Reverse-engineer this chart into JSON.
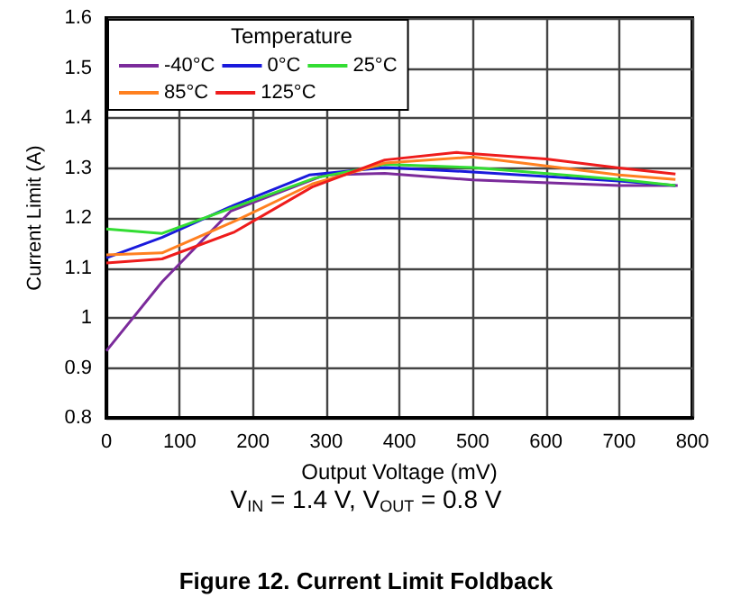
{
  "chart_data": {
    "type": "line",
    "title": "Figure 12. Current Limit Foldback",
    "xlabel": "Output Voltage (mV)",
    "ylabel": "Current Limit (A)",
    "legend_title": "Temperature",
    "annotations": [
      "V$_{IN}$ = 1.4 V, V$_{OUT}$ = 0.8 V"
    ],
    "xlim": [
      0,
      800
    ],
    "xticks": [
      0,
      100,
      200,
      300,
      400,
      500,
      600,
      700,
      800
    ],
    "ylim": [
      0.8,
      1.6
    ],
    "yticks": [
      0.8,
      0.9,
      1,
      1.1,
      1.2,
      1.3,
      1.4,
      1.5,
      1.6
    ],
    "grid": true,
    "legend": "top left",
    "marker": "none",
    "line_style": "solid",
    "series": [
      {
        "name": "-40°C",
        "color": "#7b2b9b",
        "x": [
          0,
          76,
          170,
          298,
          380,
          500,
          700,
          780
        ],
        "values": [
          0.934,
          1.072,
          1.214,
          1.286,
          1.289,
          1.276,
          1.265,
          1.265
        ]
      },
      {
        "name": "0°C",
        "color": "#1a1adc",
        "x": [
          0,
          76,
          175,
          277,
          380,
          500,
          700,
          777
        ],
        "values": [
          1.12,
          1.161,
          1.226,
          1.286,
          1.301,
          1.292,
          1.274,
          1.265
        ]
      },
      {
        "name": "25°C",
        "color": "#33dd33",
        "x": [
          0,
          76,
          183,
          285,
          380,
          500,
          700,
          777
        ],
        "values": [
          1.178,
          1.169,
          1.226,
          1.28,
          1.307,
          1.301,
          1.277,
          1.265
        ]
      },
      {
        "name": "85°C",
        "color": "#ff8020",
        "x": [
          0,
          76,
          179,
          281,
          380,
          500,
          700,
          777
        ],
        "values": [
          1.126,
          1.13,
          1.196,
          1.268,
          1.31,
          1.322,
          1.286,
          1.277
        ]
      },
      {
        "name": "125°C",
        "color": "#ee1c1c",
        "x": [
          0,
          76,
          175,
          281,
          380,
          478,
          600,
          700,
          777
        ],
        "values": [
          1.11,
          1.118,
          1.172,
          1.262,
          1.316,
          1.331,
          1.318,
          1.3,
          1.288
        ]
      }
    ]
  }
}
